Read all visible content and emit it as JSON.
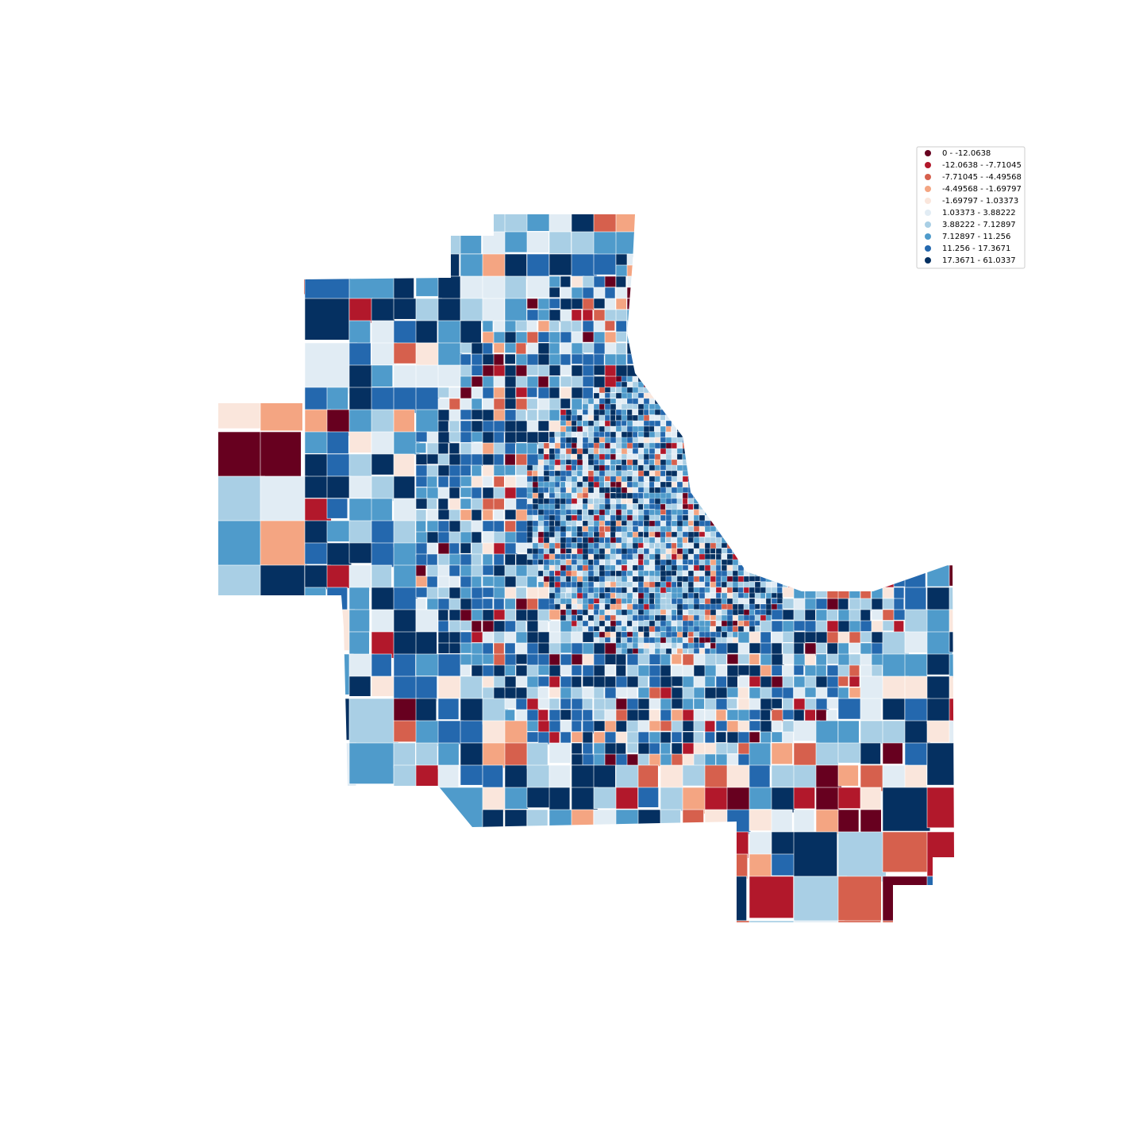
{
  "legend": {
    "items": [
      {
        "label": "0 - -12.0638",
        "color": "#67001f"
      },
      {
        "label": "-12.0638 - -7.71045",
        "color": "#b2182b"
      },
      {
        "label": "-7.71045 - -4.49568",
        "color": "#d6604d"
      },
      {
        "label": "-4.49568 - -1.69797",
        "color": "#f4a582"
      },
      {
        "label": "-1.69797 - 1.03373",
        "color": "#fae6dc"
      },
      {
        "label": "1.03373 - 3.88222",
        "color": "#e1ecf4"
      },
      {
        "label": "3.88222 - 7.12897",
        "color": "#a9cfe5"
      },
      {
        "label": "7.12897 - 11.256",
        "color": "#4f9bcb"
      },
      {
        "label": "11.256 - 17.3671",
        "color": "#2468ae"
      },
      {
        "label": "17.3671 - 61.0337",
        "color": "#053061"
      }
    ]
  }
}
